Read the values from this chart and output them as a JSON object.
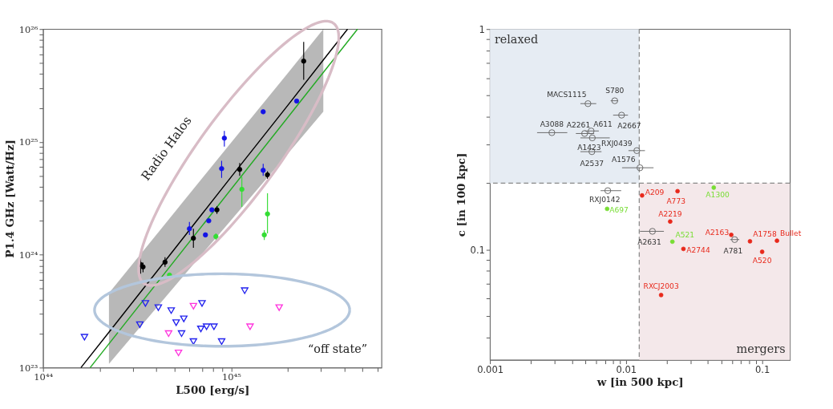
{
  "chart_data": [
    {
      "type": "scatter",
      "xlabel": "L500 [erg/s]",
      "ylabel": "P1.4 GHz [Watt/Hz]",
      "log": "xy",
      "xlim": [
        1e+44,
        6.3e+45
      ],
      "ylim": [
        1e+23,
        1e+26
      ],
      "xticks": [
        {
          "value": 1e+44,
          "label": "10⁴⁴"
        },
        {
          "value": 2e+44,
          "label": null
        },
        {
          "value": 3e+44,
          "label": null
        },
        {
          "value": 4e+44,
          "label": null
        },
        {
          "value": 5e+44,
          "label": null
        },
        {
          "value": 6e+44,
          "label": null
        },
        {
          "value": 7e+44,
          "label": null
        },
        {
          "value": 8e+44,
          "label": null
        },
        {
          "value": 9e+44,
          "label": null
        },
        {
          "value": 1e+45,
          "label": "10⁴⁵"
        },
        {
          "value": 2e+45,
          "label": null
        },
        {
          "value": 3e+45,
          "label": null
        },
        {
          "value": 4e+45,
          "label": null
        },
        {
          "value": 5e+45,
          "label": null
        },
        {
          "value": 6e+45,
          "label": null
        }
      ],
      "yticks": [
        {
          "value": 1e+23,
          "label": "10²³"
        },
        {
          "value": 2e+23,
          "label": null
        },
        {
          "value": 3e+23,
          "label": null
        },
        {
          "value": 4e+23,
          "label": null
        },
        {
          "value": 5e+23,
          "label": null
        },
        {
          "value": 6e+23,
          "label": null
        },
        {
          "value": 7e+23,
          "label": null
        },
        {
          "value": 8e+23,
          "label": null
        },
        {
          "value": 9e+23,
          "label": null
        },
        {
          "value": 1e+24,
          "label": "10²⁴"
        },
        {
          "value": 2e+24,
          "label": null
        },
        {
          "value": 3e+24,
          "label": null
        },
        {
          "value": 4e+24,
          "label": null
        },
        {
          "value": 5e+24,
          "label": null
        },
        {
          "value": 6e+24,
          "label": null
        },
        {
          "value": 7e+24,
          "label": null
        },
        {
          "value": 8e+24,
          "label": null
        },
        {
          "value": 9e+24,
          "label": null
        },
        {
          "value": 1e+25,
          "label": "10²⁵"
        },
        {
          "value": 2e+25,
          "label": null
        },
        {
          "value": 3e+25,
          "label": null
        },
        {
          "value": 4e+25,
          "label": null
        },
        {
          "value": 5e+25,
          "label": null
        },
        {
          "value": 6e+25,
          "label": null
        },
        {
          "value": 7e+25,
          "label": null
        },
        {
          "value": 8e+25,
          "label": null
        },
        {
          "value": 9e+25,
          "label": null
        },
        {
          "value": 1e+26,
          "label": "10²⁶"
        }
      ],
      "series": [
        {
          "type": "line",
          "color": "#000000",
          "x": [
            1.59e+44,
            2.24e+44,
            5.01e+44,
            1e+45,
            2e+45,
            3.09e+45,
            4.16e+45
          ],
          "values": [
            1e+23,
            2.06e+23,
            1.13e+24,
            4.89e+24,
            2.11e+25,
            5.33e+25,
            1e+26
          ],
          "lower": [
            null,
            1.08e+23,
            5.26e+23,
            2.03e+24,
            7.85e+24,
            1.85e+25,
            null
          ],
          "upper": [
            null,
            4.58e+23,
            2.39e+24,
            9.89e+24,
            4.07e+25,
            1e+26,
            null
          ]
        },
        {
          "type": "line",
          "color": "#22aa22",
          "x": [
            1.78e+44,
            4.7e+45
          ],
          "values": [
            1e+23,
            1e+26
          ]
        },
        {
          "color": "#000000",
          "marker": "circle",
          "x": [
            2.43e+45,
            1.11e+45,
            1.56e+45,
            8.4e+44,
            6.3e+44,
            3.3e+44,
            3.4e+44,
            4.45e+44
          ],
          "values": [
            5.2e+25,
            5.7e+24,
            5.1e+24,
            2.5e+24,
            1.4e+24,
            8.2e+23,
            7.8e+23,
            8.6e+23
          ],
          "errors": [
            [
              3.55e+25,
              7.7e+25
            ],
            [
              5e+24,
              6.5e+24
            ],
            [
              4.7e+24,
              5.5e+24
            ],
            [
              2.3e+24,
              2.7e+24
            ],
            [
              1.15e+24,
              1.7e+24
            ],
            [
              6.8e+23,
              1e+24
            ],
            [
              7e+23,
              8.5e+23
            ],
            [
              7.8e+23,
              9.5e+23
            ]
          ]
        },
        {
          "color": "#1414e6",
          "marker": "circle",
          "x": [
            2.23e+45,
            1.48e+45,
            9.2e+44,
            8.9e+44,
            1.48e+45,
            7.9e+44,
            6e+44,
            7.6e+44,
            7.3e+44
          ],
          "values": [
            2.3e+25,
            1.85e+25,
            1.08e+25,
            5.8e+24,
            5.6e+24,
            2.5e+24,
            1.7e+24,
            2e+24,
            1.5e+24
          ],
          "errors": [
            null,
            null,
            [
              9.1e+24,
              1.25e+25
            ],
            [
              4.8e+24,
              6.8e+24
            ],
            [
              5e+24,
              6.4e+24
            ],
            null,
            [
              1.5e+24,
              1.95e+24
            ],
            null,
            null
          ]
        },
        {
          "color": "#33dd33",
          "marker": "circle",
          "x": [
            1.14e+45,
            1.56e+45,
            1.5e+45,
            8.3e+44,
            4.7e+44
          ],
          "values": [
            3.8e+24,
            2.3e+24,
            1.5e+24,
            1.45e+24,
            6.6e+23
          ],
          "errors": [
            [
              2.65e+24,
              4.9e+24
            ],
            [
              1.55e+24,
              3.5e+24
            ],
            [
              1.35e+24,
              1.65e+24
            ],
            [
              1.35e+24,
              1.55e+24
            ],
            null
          ]
        },
        {
          "color": "#2222ee",
          "marker": "triangle",
          "x": [
            1.66e+44,
            3.27e+44,
            3.5e+44,
            4.1e+44,
            4.8e+44,
            5.1e+44,
            5.45e+44,
            5.6e+44,
            6.3e+44,
            6.9e+44,
            7e+44,
            7.4e+44,
            8.1e+44,
            8.9e+44,
            1.18e+45
          ],
          "values": [
            1.86e+23,
            2.4e+23,
            3.7e+23,
            3.4e+23,
            3.2e+23,
            2.5e+23,
            2e+23,
            2.7e+23,
            1.7e+23,
            2.2e+23,
            3.7e+23,
            2.3e+23,
            2.3e+23,
            1.7e+23,
            4.8e+23
          ]
        },
        {
          "color": "#ff33dd",
          "marker": "triangle",
          "x": [
            4.65e+44,
            5.25e+44,
            6.3e+44,
            1.26e+45,
            1.8e+45
          ],
          "values": [
            2e+23,
            1.35e+23,
            3.5e+23,
            2.3e+23,
            3.4e+23
          ]
        }
      ],
      "annotations": [
        "Radio Halos",
        "“off state”"
      ]
    },
    {
      "type": "scatter",
      "xlabel": "w [in 500 kpc]",
      "ylabel": "c [in 100 kpc]",
      "log": "xy",
      "xlim": [
        0.001,
        0.16
      ],
      "ylim": [
        0.0316,
        1
      ],
      "xticks": [
        0.001,
        {
          "value": 0.002,
          "label": null
        },
        {
          "value": 0.003,
          "label": null
        },
        {
          "value": 0.004,
          "label": null
        },
        {
          "value": 0.005,
          "label": null
        },
        {
          "value": 0.006,
          "label": null
        },
        {
          "value": 0.007,
          "label": null
        },
        {
          "value": 0.008,
          "label": null
        },
        {
          "value": 0.009,
          "label": null
        },
        0.01,
        {
          "value": 0.02,
          "label": null
        },
        {
          "value": 0.03,
          "label": null
        },
        {
          "value": 0.04,
          "label": null
        },
        {
          "value": 0.05,
          "label": null
        },
        {
          "value": 0.06,
          "label": null
        },
        {
          "value": 0.07,
          "label": null
        },
        {
          "value": 0.08,
          "label": null
        },
        {
          "value": 0.09,
          "label": null
        },
        0.1
      ],
      "yticks": [
        {
          "value": 0.04,
          "label": null
        },
        {
          "value": 0.05,
          "label": null
        },
        {
          "value": 0.06,
          "label": null
        },
        {
          "value": 0.07,
          "label": null
        },
        {
          "value": 0.08,
          "label": null
        },
        {
          "value": 0.09,
          "label": null
        },
        0.1,
        {
          "value": 0.2,
          "label": null
        },
        {
          "value": 0.3,
          "label": null
        },
        {
          "value": 0.4,
          "label": null
        },
        {
          "value": 0.5,
          "label": null
        },
        {
          "value": 0.6,
          "label": null
        },
        {
          "value": 0.7,
          "label": null
        },
        {
          "value": 0.8,
          "label": null
        },
        {
          "value": 0.9,
          "label": null
        },
        1
      ],
      "bands": [
        {
          "axis": "x",
          "from": 0.001,
          "to": 0.0125,
          "label": "relaxed",
          "color": "#e6ecf3"
        },
        {
          "axis": "x",
          "from": 0.0125,
          "to": 0.16,
          "label": "mergers",
          "color": "#f4e8ea"
        }
      ],
      "ref_lines": [
        {
          "axis": "x",
          "value": 0.0125,
          "color": "#888888",
          "line_style": "dashed"
        },
        {
          "axis": "y",
          "value": 0.2,
          "color": "#888888",
          "line_style": "dashed"
        }
      ],
      "series": [
        {
          "color": "#666666",
          "marker": "circle",
          "x": [
            0.00525,
            0.00826,
            0.00927,
            0.00285,
            0.00496,
            0.00554,
            0.00565,
            0.00561,
            0.012,
            0.01265,
            0.00734,
            0.01563,
            0.0628
          ],
          "values": [
            0.459,
            0.473,
            0.407,
            0.339,
            0.336,
            0.345,
            0.321,
            0.278,
            0.281,
            0.235,
            0.185,
            0.121,
            0.111
          ],
          "xerrors": [
            [
              0.00462,
              0.00604
            ],
            [
              0.00771,
              0.00875
            ],
            [
              0.00804,
              0.01033
            ],
            [
              0.00222,
              0.0037
            ],
            [
              0.00428,
              0.00583
            ],
            [
              0.005,
              0.00631
            ],
            [
              0.00462,
              0.00759
            ],
            [
              0.00462,
              0.0066
            ],
            [
              0.01042,
              0.01377
            ],
            [
              0.00935,
              0.01592
            ],
            [
              0.0065,
              0.00921
            ],
            [
              0.01265,
              0.01897
            ],
            [
              0.0582,
              0.0679
            ]
          ]
        },
        {
          "color": "#e8291c",
          "marker": "circle",
          "x": [
            0.01312,
            0.0239,
            0.0211,
            0.0264,
            0.0593,
            0.0814,
            0.1285,
            0.1,
            0.0181
          ],
          "values": [
            0.176,
            0.184,
            0.134,
            0.1007,
            0.1166,
            0.109,
            0.1097,
            0.0977,
            0.0622
          ]
        },
        {
          "color": "#77dd33",
          "marker": "circle",
          "x": [
            0.0441,
            0.00726,
            0.0219
          ],
          "values": [
            0.191,
            0.153,
            0.1086
          ]
        }
      ],
      "annotations": [
        {
          "text": "MACS1115",
          "x": 0.00525,
          "y": 0.459
        },
        {
          "text": "S780",
          "x": 0.00826,
          "y": 0.473
        },
        {
          "text": "A2667",
          "x": 0.00927,
          "y": 0.407
        },
        {
          "text": "A3088",
          "x": 0.00285,
          "y": 0.339
        },
        {
          "text": "A2261",
          "x": 0.00496,
          "y": 0.336
        },
        {
          "text": "A611",
          "x": 0.00554,
          "y": 0.345
        },
        {
          "text": "A1423",
          "x": 0.00565,
          "y": 0.321
        },
        {
          "text": "A2537",
          "x": 0.00561,
          "y": 0.278
        },
        {
          "text": "RXJ0439",
          "x": 0.012,
          "y": 0.281
        },
        {
          "text": "A1576",
          "x": 0.01265,
          "y": 0.235
        },
        {
          "text": "RXJ0142",
          "x": 0.00734,
          "y": 0.185
        },
        {
          "text": "A2631",
          "x": 0.01563,
          "y": 0.121
        },
        {
          "text": "A781",
          "x": 0.0628,
          "y": 0.111
        },
        {
          "text": "A209",
          "x": 0.01312,
          "y": 0.176
        },
        {
          "text": "A773",
          "x": 0.0239,
          "y": 0.184
        },
        {
          "text": "A2219",
          "x": 0.0211,
          "y": 0.134
        },
        {
          "text": "A2744",
          "x": 0.0264,
          "y": 0.1007
        },
        {
          "text": "A2163",
          "x": 0.0593,
          "y": 0.1166
        },
        {
          "text": "A1758",
          "x": 0.0814,
          "y": 0.109
        },
        {
          "text": "Bullet",
          "x": 0.1285,
          "y": 0.1097
        },
        {
          "text": "A520",
          "x": 0.1,
          "y": 0.0977
        },
        {
          "text": "RXCJ2003",
          "x": 0.0181,
          "y": 0.0622
        },
        {
          "text": "A1300",
          "x": 0.0441,
          "y": 0.191
        },
        {
          "text": "A697",
          "x": 0.00726,
          "y": 0.153
        },
        {
          "text": "A521",
          "x": 0.0219,
          "y": 0.1086
        }
      ]
    }
  ]
}
